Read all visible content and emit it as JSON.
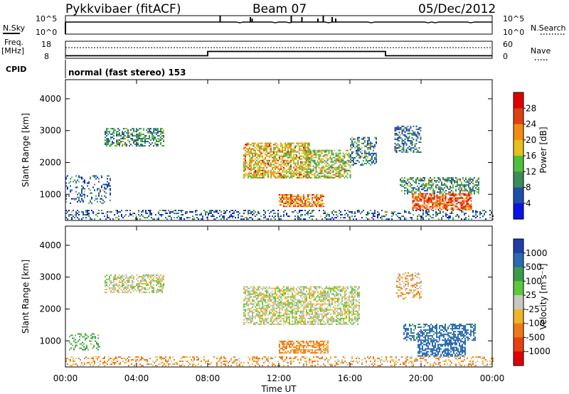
{
  "header": {
    "station": "Pykkvibaer (fitACF)",
    "beam": "Beam 07",
    "date": "05/Dec/2012"
  },
  "summary_panels": {
    "nsky_label": "N.Sky",
    "nsky_ticks": [
      "10^5",
      "10^0"
    ],
    "nsearch_label": "N.Search",
    "nsearch_ticks": [
      "10^5",
      "10^0"
    ],
    "freq_label_1": "Freq.",
    "freq_label_2": "[MHz]",
    "freq_ticks": [
      "18",
      "8"
    ],
    "nave_label": "Nave",
    "nave_ticks": [
      "60",
      "0"
    ],
    "cpid_label": "CPID",
    "cpid_text": "normal (fast stereo) 153",
    "freq_steps": [
      {
        "t0": 0,
        "t1": 8,
        "level": 9.5
      },
      {
        "t0": 8,
        "t1": 18,
        "level": 12.0
      },
      {
        "t0": 18,
        "t1": 24,
        "level": 9.5
      }
    ]
  },
  "chart_data": [
    {
      "type": "heatmap",
      "name": "power",
      "ylabel": "Slant Range [km]",
      "xlim": [
        0,
        24
      ],
      "ylim": [
        180,
        4600
      ],
      "y_ticks": [
        "1000",
        "2000",
        "3000",
        "4000"
      ],
      "y_tick_values": [
        1000,
        2000,
        3000,
        4000
      ],
      "colorbar_label": "Power [dB]",
      "colorbar_ticks": [
        "4",
        "8",
        "12",
        "16",
        "20",
        "24",
        "28"
      ],
      "colorbar_colors": [
        "#0a14e6",
        "#1f4fa8",
        "#3a8c5a",
        "#4fbf3a",
        "#e6c01e",
        "#f08c14",
        "#e04010",
        "#e00000"
      ],
      "regions": [
        {
          "t0": 2.2,
          "t1": 5.5,
          "r0": 2500,
          "r1": 3050,
          "value": 9,
          "density": 0.55
        },
        {
          "t0": 10.0,
          "t1": 13.8,
          "r0": 1500,
          "r1": 2600,
          "value": 18,
          "density": 0.65
        },
        {
          "t0": 13.5,
          "t1": 16.0,
          "r0": 1500,
          "r1": 2400,
          "value": 14,
          "density": 0.55
        },
        {
          "t0": 12.0,
          "t1": 14.5,
          "r0": 600,
          "r1": 1000,
          "value": 22,
          "density": 0.7
        },
        {
          "t0": 16.0,
          "t1": 17.5,
          "r0": 1900,
          "r1": 2800,
          "value": 8,
          "density": 0.4
        },
        {
          "t0": 18.5,
          "t1": 20.0,
          "r0": 2300,
          "r1": 3150,
          "value": 7,
          "density": 0.45
        },
        {
          "t0": 18.8,
          "t1": 23.2,
          "r0": 1000,
          "r1": 1500,
          "value": 9,
          "density": 0.5
        },
        {
          "t0": 19.5,
          "t1": 22.8,
          "r0": 500,
          "r1": 1000,
          "value": 24,
          "density": 0.65
        },
        {
          "t0": 0.0,
          "t1": 24.0,
          "r0": 200,
          "r1": 500,
          "value": 6,
          "density": 0.3
        },
        {
          "t0": 0.0,
          "t1": 2.5,
          "r0": 700,
          "r1": 1600,
          "value": 6,
          "density": 0.2
        }
      ]
    },
    {
      "type": "heatmap",
      "name": "velocity",
      "ylabel": "Slant Range [km]",
      "xlabel": "Time UT",
      "xlim": [
        0,
        24
      ],
      "ylim": [
        180,
        4600
      ],
      "x_ticks": [
        "00:00",
        "04:00",
        "08:00",
        "12:00",
        "16:00",
        "20:00",
        "00:00"
      ],
      "x_tick_values": [
        0,
        4,
        8,
        12,
        16,
        20,
        24
      ],
      "y_ticks": [
        "1000",
        "2000",
        "3000",
        "4000"
      ],
      "y_tick_values": [
        1000,
        2000,
        3000,
        4000
      ],
      "colorbar_label": "Velocity [m s⁻¹]",
      "colorbar_ticks": [
        "1000",
        "500",
        "100",
        "25",
        "-25",
        "-100",
        "-500",
        "-1000"
      ],
      "colorbar_colors": [
        "#1f3ca8",
        "#2a6ab0",
        "#3a9c4a",
        "#5cc83a",
        "#c8c8c0",
        "#f0b428",
        "#f07818",
        "#e84010",
        "#e00000"
      ],
      "regions": [
        {
          "t0": 2.2,
          "t1": 5.5,
          "r0": 2500,
          "r1": 3050,
          "value": 0,
          "density": 0.55
        },
        {
          "t0": 10.0,
          "t1": 16.5,
          "r0": 1500,
          "r1": 2700,
          "value": 0,
          "density": 0.6
        },
        {
          "t0": 12.0,
          "t1": 14.8,
          "r0": 600,
          "r1": 1000,
          "value": -80,
          "density": 0.6
        },
        {
          "t0": 18.6,
          "t1": 20.0,
          "r0": 2300,
          "r1": 3150,
          "value": -40,
          "density": 0.4
        },
        {
          "t0": 19.0,
          "t1": 23.0,
          "r0": 1000,
          "r1": 1500,
          "value": 300,
          "density": 0.5
        },
        {
          "t0": 19.8,
          "t1": 22.5,
          "r0": 500,
          "r1": 1000,
          "value": 600,
          "density": 0.6
        },
        {
          "t0": 0.0,
          "t1": 24.0,
          "r0": 200,
          "r1": 500,
          "value": -60,
          "density": 0.3
        },
        {
          "t0": 0.2,
          "t1": 2.0,
          "r0": 700,
          "r1": 1200,
          "value": 80,
          "density": 0.25
        }
      ]
    }
  ]
}
